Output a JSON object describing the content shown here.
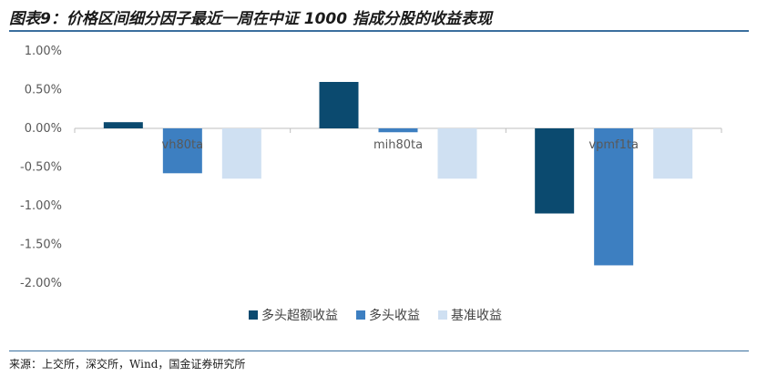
{
  "title": "图表9：价格区间细分因子最近一周在中证 1000 指成分股的收益表现",
  "source": "来源：上交所，深交所，Wind，国金证券研究所",
  "chart_data": {
    "type": "bar",
    "categories": [
      "vh80ta",
      "mih80ta",
      "vpmf1ta"
    ],
    "series": [
      {
        "name": "多头超额收益",
        "color": "#0b4a6f",
        "values": [
          0.08,
          0.6,
          -1.1
        ]
      },
      {
        "name": "多头收益",
        "color": "#3d7fc1",
        "values": [
          -0.58,
          -0.05,
          -1.77
        ]
      },
      {
        "name": "基准收益",
        "color": "#cfe0f2",
        "values": [
          -0.65,
          -0.65,
          -0.65
        ]
      }
    ],
    "ylim": [
      -2.0,
      1.0
    ],
    "yticks": [
      "1.00%",
      "0.50%",
      "0.00%",
      "-0.50%",
      "-1.00%",
      "-1.50%",
      "-2.00%"
    ],
    "legend_position": "bottom",
    "grid": false
  }
}
